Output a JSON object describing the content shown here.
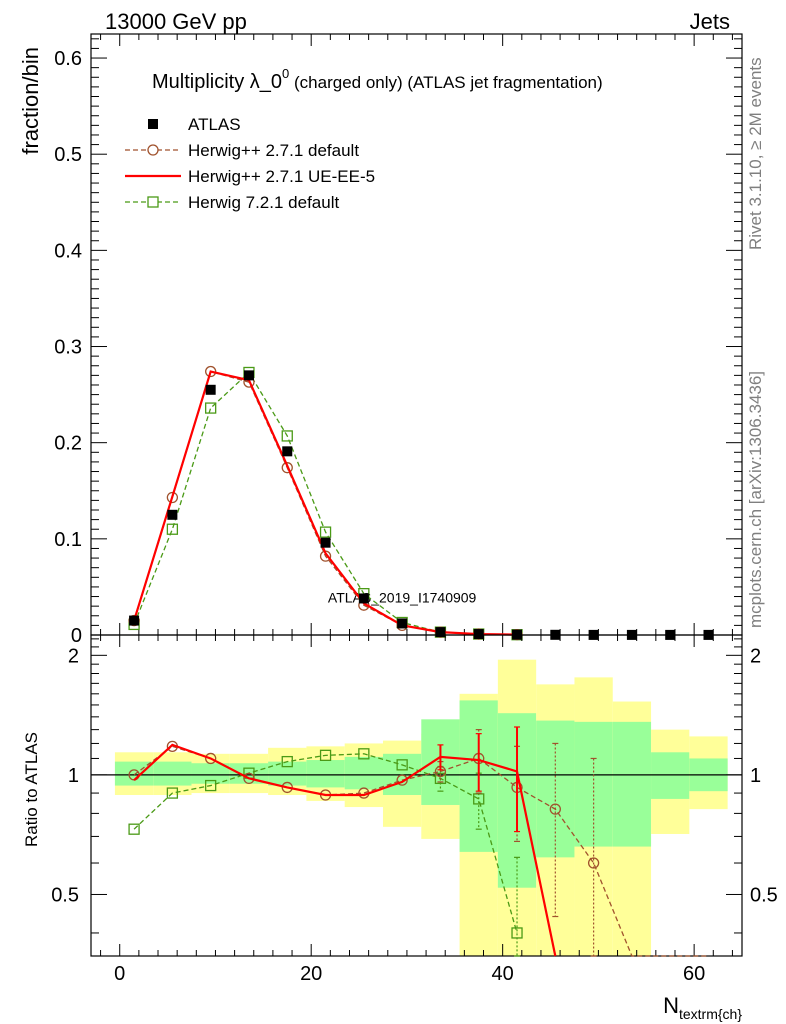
{
  "header": {
    "energy": "13000 GeV pp",
    "process": "Jets"
  },
  "side": {
    "rivet": "Rivet 3.1.10, ≥ 2M events",
    "mcplots": "mcplots.cern.ch [arXiv:1306.3436]"
  },
  "chart_data": [
    {
      "type": "line",
      "title": "Multiplicity λ_0",
      "title_sup": "0",
      "title_suffix": " (charged only) (ATLAS jet fragmentation)",
      "watermark": "ATLAS_2019_I1740909",
      "xlabel": "N",
      "xlabel_sub": "textrm{ch}",
      "ylabel": "fraction/bin",
      "xlim": [
        -3,
        65
      ],
      "ylim": [
        0,
        0.625
      ],
      "yticks": [
        "0",
        "0.1",
        "0.2",
        "0.3",
        "0.4",
        "0.5",
        "0.6"
      ],
      "x": [
        1.5,
        5.5,
        9.5,
        13.5,
        17.5,
        21.5,
        25.5,
        29.5,
        33.5,
        37.5,
        41.5,
        45.5,
        49.5,
        53.5,
        57.5,
        61.5
      ],
      "series": [
        {
          "name": "ATLAS",
          "style": "data",
          "color": "#000000",
          "values": [
            0.015,
            0.125,
            0.255,
            0.27,
            0.191,
            0.096,
            0.038,
            0.012,
            0.003,
            0.001,
            0.0004,
            0.0002,
            0.0001,
            0.0001,
            0.0001,
            0.0001
          ]
        },
        {
          "name": "Herwig++ 2.7.1 default",
          "style": "dashed-circle",
          "color": "#a0522d",
          "values": [
            0.015,
            0.143,
            0.274,
            0.263,
            0.174,
            0.082,
            0.031,
            0.01,
            0.003,
            0.001,
            0.0004,
            0.0002,
            0.0001,
            0.0001,
            0.0001,
            0.0001
          ]
        },
        {
          "name": "Herwig++ 2.7.1 UE-EE-5",
          "style": "solid",
          "color": "#ff0000",
          "values": [
            0.015,
            0.144,
            0.274,
            0.265,
            0.176,
            0.085,
            0.033,
            0.01,
            0.003,
            0.001,
            0.0004,
            0.0001,
            0.0001,
            0.0,
            0.0,
            0.0
          ]
        },
        {
          "name": "Herwig 7.2.1 default",
          "style": "dashed-square",
          "color": "#4a9a16",
          "values": [
            0.011,
            0.11,
            0.236,
            0.273,
            0.207,
            0.107,
            0.043,
            0.013,
            0.003,
            0.001,
            0.0003,
            0.0001,
            0.0001,
            0.0,
            0.0,
            0.0
          ]
        }
      ]
    },
    {
      "type": "line",
      "ylabel": "Ratio to ATLAS",
      "xlim": [
        -3,
        65
      ],
      "ylim": [
        0.35,
        2.25
      ],
      "yticks": [
        "0.5",
        "1",
        "2"
      ],
      "xticks": [
        "0",
        "20",
        "40",
        "60"
      ],
      "band_edges": [
        -0.5,
        3.5,
        7.5,
        11.5,
        15.5,
        19.5,
        23.5,
        27.5,
        31.5,
        35.5,
        39.5,
        43.5,
        47.5,
        51.5,
        55.5,
        59.5,
        63.5
      ],
      "band_inner_lo": [
        0.94,
        0.94,
        0.95,
        0.95,
        0.94,
        0.93,
        0.92,
        0.89,
        0.84,
        0.64,
        0.52,
        0.62,
        0.66,
        0.66,
        0.87,
        0.91
      ],
      "band_inner_hi": [
        1.08,
        1.08,
        1.07,
        1.07,
        1.08,
        1.09,
        1.11,
        1.13,
        1.38,
        1.54,
        1.43,
        1.37,
        1.36,
        1.36,
        1.14,
        1.1
      ],
      "band_outer_lo": [
        0.89,
        0.89,
        0.9,
        0.9,
        0.89,
        0.86,
        0.83,
        0.74,
        0.69,
        0.35,
        0.35,
        0.35,
        0.35,
        0.35,
        0.71,
        0.82
      ],
      "band_outer_hi": [
        1.14,
        1.14,
        1.13,
        1.13,
        1.17,
        1.18,
        1.2,
        1.22,
        1.27,
        1.6,
        1.95,
        1.69,
        1.76,
        1.53,
        1.3,
        1.25
      ],
      "series": [
        {
          "name": "Herwig++ 2.7.1 default",
          "color": "#a0522d",
          "values": [
            1.0,
            1.18,
            1.1,
            0.98,
            0.93,
            0.89,
            0.9,
            0.97,
            1.02,
            1.1,
            0.93,
            0.82,
            0.6,
            0.35,
            0.35,
            0.35
          ],
          "err": [
            0.02,
            0.02,
            0.01,
            0.01,
            0.01,
            0.02,
            0.02,
            0.03,
            0.06,
            0.2,
            0.25,
            0.38,
            0.5,
            0.5,
            0.5,
            0.5
          ]
        },
        {
          "name": "Herwig++ 2.7.1 UE-EE-5",
          "color": "#ff0000",
          "values": [
            0.97,
            1.19,
            1.1,
            0.98,
            0.93,
            0.89,
            0.89,
            0.96,
            1.11,
            1.09,
            1.02,
            0.3
          ],
          "err": [
            0.02,
            0.02,
            0.01,
            0.01,
            0.01,
            0.02,
            0.02,
            0.03,
            0.08,
            0.18,
            0.3,
            0.4
          ]
        },
        {
          "name": "Herwig 7.2.1 default",
          "color": "#4a9a16",
          "values": [
            0.73,
            0.9,
            0.94,
            1.01,
            1.08,
            1.12,
            1.13,
            1.06,
            0.98,
            0.87,
            0.4
          ],
          "err": [
            0.02,
            0.02,
            0.01,
            0.01,
            0.01,
            0.02,
            0.02,
            0.03,
            0.07,
            0.14,
            0.22
          ]
        }
      ]
    }
  ]
}
